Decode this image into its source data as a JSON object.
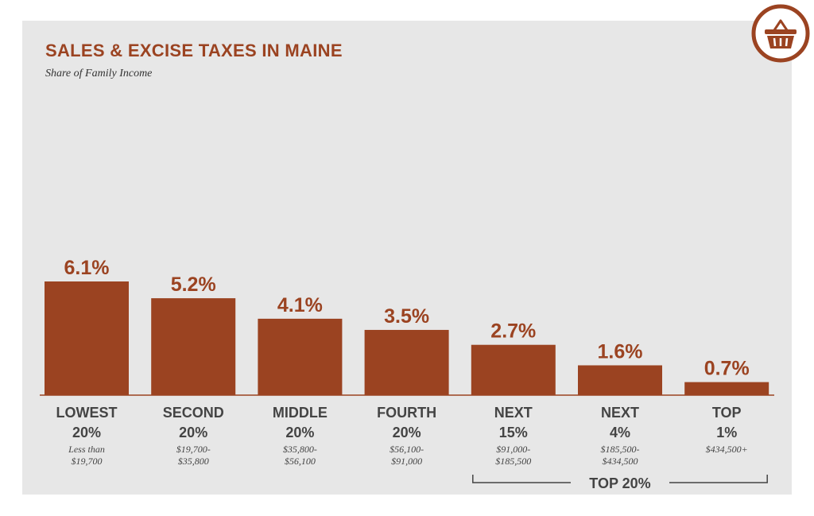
{
  "colors": {
    "bar": "#9b4321",
    "title": "#9b4321",
    "panel": "#e7e7e7",
    "axis": "#9b4321",
    "text": "#444444"
  },
  "header": {
    "title": "SALES & EXCISE TAXES IN MAINE",
    "subtitle": "Share of Family Income"
  },
  "logo": {
    "icon": "shopping-basket-icon"
  },
  "chart_data": {
    "type": "bar",
    "title": "SALES & EXCISE TAXES IN MAINE",
    "subtitle": "Share of Family Income",
    "xlabel": "",
    "ylabel": "",
    "ylim": [
      0,
      6.1
    ],
    "grid": false,
    "categories": [
      {
        "line1": "LOWEST",
        "line2": "20%",
        "range": [
          "Less than",
          "$19,700"
        ]
      },
      {
        "line1": "SECOND",
        "line2": "20%",
        "range": [
          "$19,700-",
          "$35,800"
        ]
      },
      {
        "line1": "MIDDLE",
        "line2": "20%",
        "range": [
          "$35,800-",
          "$56,100"
        ]
      },
      {
        "line1": "FOURTH",
        "line2": "20%",
        "range": [
          "$56,100-",
          "$91,000"
        ]
      },
      {
        "line1": "NEXT",
        "line2": "15%",
        "range": [
          "$91,000-",
          "$185,500"
        ]
      },
      {
        "line1": "NEXT",
        "line2": "4%",
        "range": [
          "$185,500-",
          "$434,500"
        ]
      },
      {
        "line1": "TOP",
        "line2": "1%",
        "range": [
          "$434,500+"
        ]
      }
    ],
    "values": [
      6.1,
      5.2,
      4.1,
      3.5,
      2.7,
      1.6,
      0.7
    ],
    "value_labels": [
      "6.1%",
      "5.2%",
      "4.1%",
      "3.5%",
      "2.7%",
      "1.6%",
      "0.7%"
    ],
    "bracket": {
      "label": "TOP 20%",
      "from_index": 4,
      "to_index": 6
    }
  }
}
